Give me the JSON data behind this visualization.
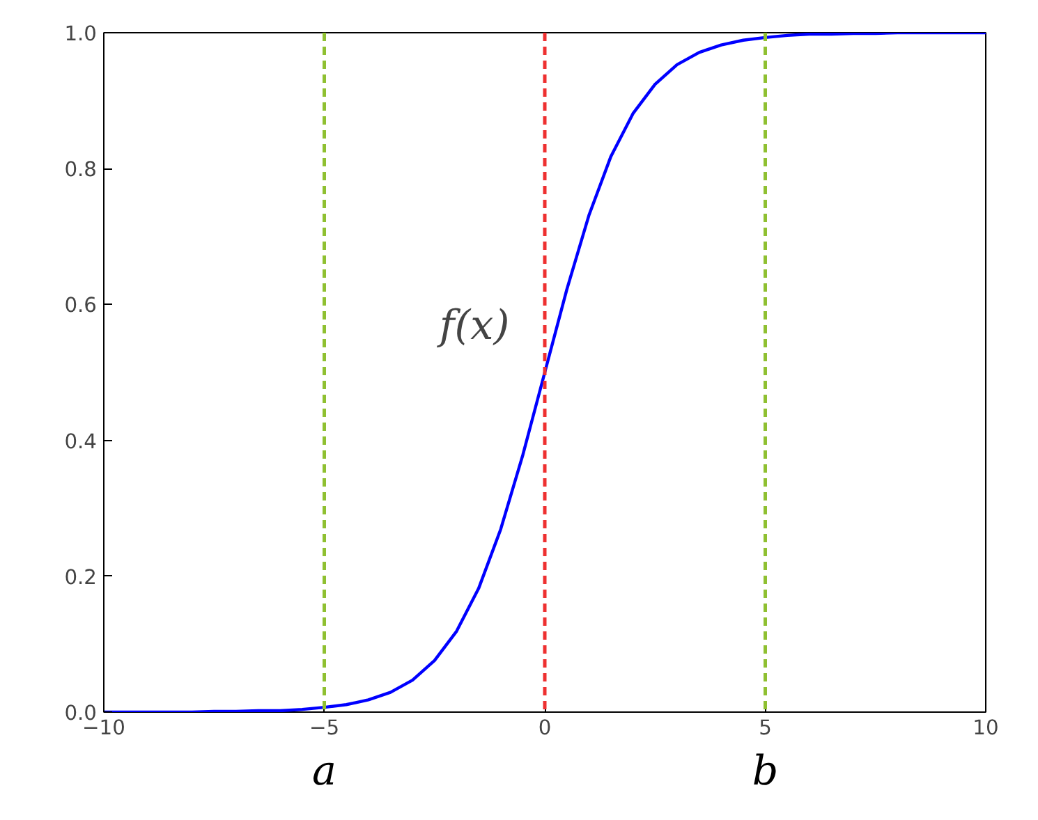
{
  "chart_data": {
    "type": "line",
    "x": [
      -10,
      -9.5,
      -9,
      -8.5,
      -8,
      -7.5,
      -7,
      -6.5,
      -6,
      -5.5,
      -5,
      -4.5,
      -4,
      -3.5,
      -3,
      -2.5,
      -2,
      -1.5,
      -1,
      -0.5,
      0,
      0.5,
      1,
      1.5,
      2,
      2.5,
      3,
      3.5,
      4,
      4.5,
      5,
      5.5,
      6,
      6.5,
      7,
      7.5,
      8,
      8.5,
      9,
      9.5,
      10
    ],
    "series": [
      {
        "color": "#0000ff",
        "values": [
          0.0,
          0.0,
          0.0,
          0.0,
          0.0,
          0.001,
          0.001,
          0.002,
          0.002,
          0.004,
          0.007,
          0.011,
          0.018,
          0.029,
          0.047,
          0.076,
          0.119,
          0.182,
          0.269,
          0.378,
          0.5,
          0.622,
          0.731,
          0.818,
          0.881,
          0.924,
          0.953,
          0.971,
          0.982,
          0.989,
          0.993,
          0.996,
          0.998,
          0.998,
          0.999,
          0.999,
          1.0,
          1.0,
          1.0,
          1.0,
          1.0
        ]
      }
    ],
    "xlim": [
      -10,
      10
    ],
    "ylim": [
      0,
      1
    ],
    "xticks": [
      {
        "value": -10,
        "label": "−10"
      },
      {
        "value": -5,
        "label": "−5"
      },
      0,
      5,
      10
    ],
    "yticks": [
      {
        "value": 0,
        "label": "0.0"
      },
      {
        "value": 0.2,
        "label": "0.2"
      },
      {
        "value": 0.4,
        "label": "0.4"
      },
      {
        "value": 0.6,
        "label": "0.6"
      },
      {
        "value": 0.8,
        "label": "0.8"
      },
      {
        "value": 1,
        "label": "1.0"
      }
    ],
    "ref_lines": [
      {
        "axis": "x",
        "value": -5,
        "label": "a",
        "color": "#8fc031",
        "line_style": "dashed"
      },
      {
        "axis": "x",
        "value": 0,
        "label": null,
        "color": "#ee3030",
        "line_style": "dashed"
      },
      {
        "axis": "x",
        "value": 5,
        "label": "b",
        "color": "#8fc031",
        "line_style": "dashed"
      }
    ],
    "annotations": [
      "f(x)"
    ],
    "grid": false,
    "line_style": "solid"
  }
}
